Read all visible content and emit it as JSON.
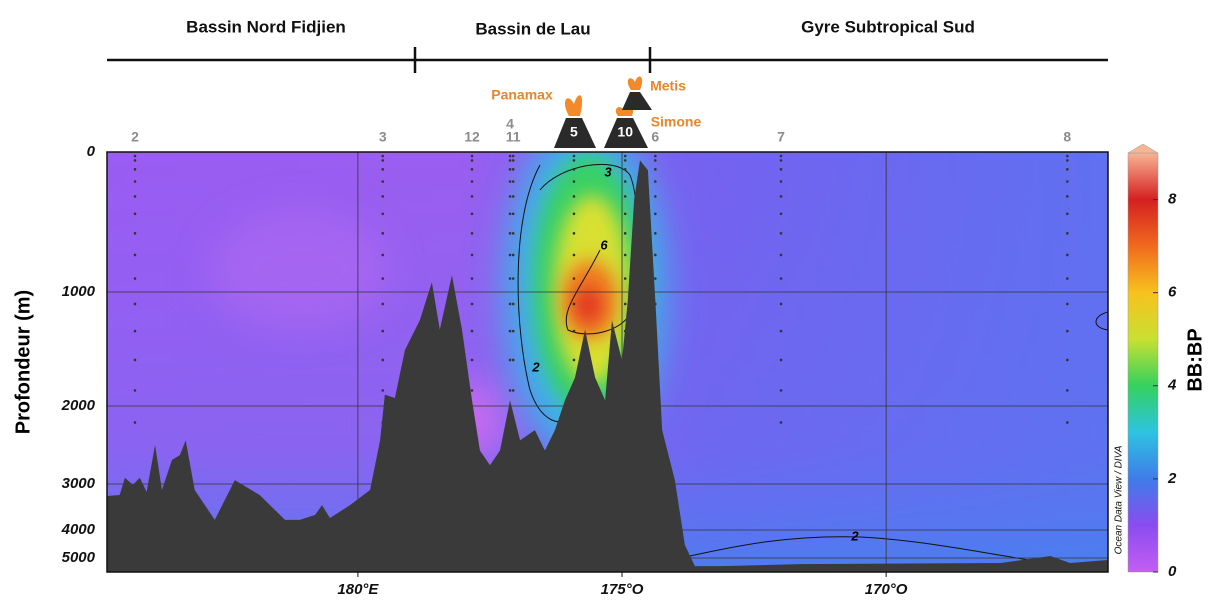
{
  "chart_data": {
    "type": "section",
    "regions": [
      "Bassin Nord Fidjien",
      "Bassin de Lau",
      "Gyre Subtropical Sud"
    ],
    "ylabel": "Profondeur (m)",
    "colorbar_label": "BB:BP",
    "watermark": "Ocean Data View / DIVA",
    "xlim": [
      175.25,
      194.2
    ],
    "xticks": [
      {
        "value": 180,
        "label": "180°E"
      },
      {
        "value": 185,
        "label": "175°O"
      },
      {
        "value": 190,
        "label": "170°O"
      }
    ],
    "ylim": [
      0,
      5500
    ],
    "yticks": [
      0,
      1000,
      2000,
      3000,
      4000,
      5000
    ],
    "grid": true,
    "clim": [
      0,
      9
    ],
    "cticks": [
      0,
      2,
      4,
      6,
      8
    ],
    "colormap": [
      "#c35ef2",
      "#8a4cf0",
      "#3f7ce8",
      "#2ec3e2",
      "#34d15e",
      "#c9e032",
      "#f7c21e",
      "#f06a1e",
      "#d42020",
      "#f8b495"
    ],
    "stations": [
      {
        "label": 2,
        "x": 175.78
      },
      {
        "label": 3,
        "x": 180.47
      },
      {
        "label": 12,
        "x": 182.16
      },
      {
        "label": 4,
        "x": 182.88
      },
      {
        "label": 11,
        "x": 182.94
      },
      {
        "label": 5,
        "x": 184.09
      },
      {
        "label": 10,
        "x": 185.06
      },
      {
        "label": 6,
        "x": 185.63
      },
      {
        "label": 7,
        "x": 188.01
      },
      {
        "label": 8,
        "x": 193.43
      }
    ],
    "volcanoes": [
      "Panamax",
      "Metis",
      "Simone"
    ],
    "contour_labels": [
      3,
      6,
      2,
      2
    ],
    "bathymetry_color": "#3a3a3a",
    "bathymetry": {
      "x": [
        175.25,
        175.49,
        175.59,
        175.74,
        175.87,
        176.0,
        176.16,
        176.29,
        176.48,
        176.63,
        176.74,
        176.91,
        177.29,
        177.67,
        178.14,
        178.62,
        178.9,
        179.19,
        179.32,
        179.47,
        179.85,
        180.23,
        180.42,
        180.51,
        180.7,
        180.89,
        181.17,
        181.4,
        181.55,
        181.78,
        181.97,
        182.16,
        182.31,
        182.5,
        182.69,
        182.88,
        183.07,
        183.35,
        183.54,
        183.73,
        183.92,
        184.11,
        184.3,
        184.49,
        184.68,
        184.81,
        185.0,
        185.11,
        185.23,
        185.34,
        185.49,
        185.63,
        185.76,
        186.0,
        186.19,
        186.38,
        186.86,
        188.37,
        192.16,
        193.11,
        193.48,
        194.2
      ],
      "depth": [
        3260,
        3240,
        2920,
        3020,
        2920,
        3170,
        2500,
        3130,
        2690,
        2630,
        2440,
        3130,
        3780,
        2950,
        3240,
        3780,
        3780,
        3670,
        3460,
        3740,
        3460,
        3130,
        2440,
        1900,
        1930,
        1510,
        1250,
        930,
        1330,
        880,
        1330,
        1950,
        2570,
        2760,
        2570,
        1950,
        2440,
        2310,
        2570,
        2310,
        1950,
        1750,
        1330,
        1750,
        1950,
        1250,
        1600,
        1070,
        340,
        60,
        130,
        1070,
        2310,
        2950,
        4540,
        5290,
        5290,
        5220,
        5180,
        4930,
        5180,
        5070
      ]
    }
  }
}
